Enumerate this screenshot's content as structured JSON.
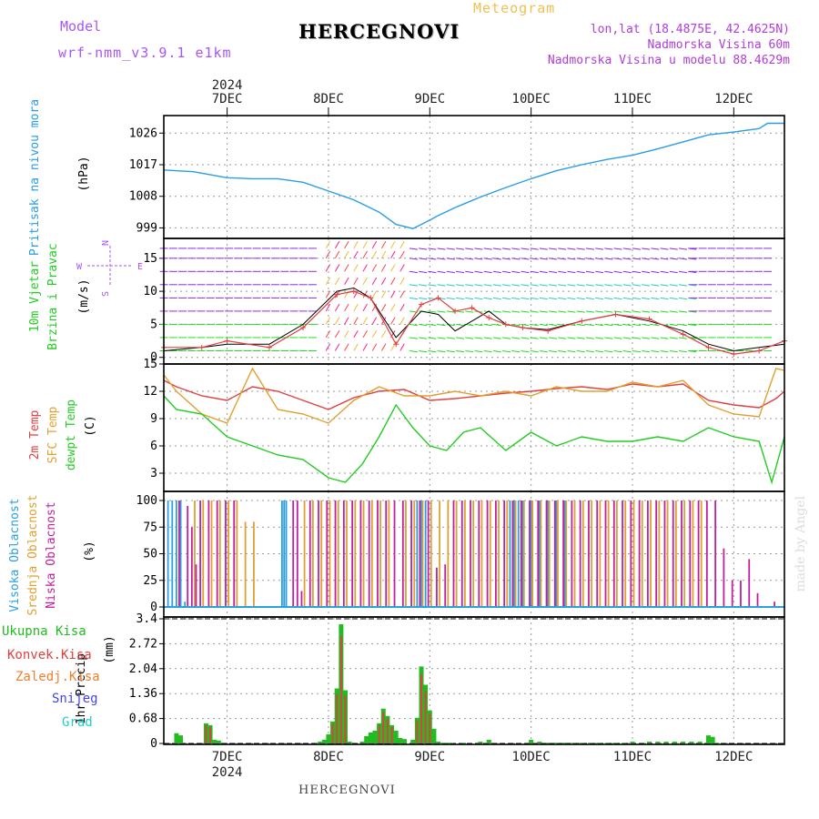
{
  "header": {
    "model_label": "Model",
    "model_name": "wrf-nmm_v3.9.1 e1km",
    "meteogram_label": "Meteogram",
    "station": "HERCEGNOVI",
    "lonlat": "lon,lat (18.4875E, 42.4625N)",
    "elevation": "Nadmorska Visina 60m",
    "model_elevation": "Nadmorska Visina u modelu 88.4629m"
  },
  "footer": {
    "station": "HERCEGNOVI",
    "credit": "made by Angel"
  },
  "colors": {
    "pressure": "#2a9de6",
    "temp2m": "#e04040",
    "sfc": "#e0a030",
    "dewpt": "#22cc22",
    "high_cloud": "#29a0e0",
    "mid_cloud": "#e0a030",
    "low_cloud": "#c020a0",
    "total_precip": "#22bb22",
    "conv_precip": "#e04040",
    "freezing": "#f08030",
    "snow": "#4444ee",
    "hail": "#22cccc",
    "wind_speed": "#000000",
    "gust": "#e04040"
  },
  "chart_data": [
    {
      "type": "line",
      "panel": "pressure",
      "ylabel_name": "Pritisak na nivou mora",
      "ylabel_unit": "(hPa)",
      "yticks": [
        999,
        1008,
        1017,
        1026
      ],
      "ylim": [
        996,
        1031
      ],
      "year": "2024",
      "days": [
        "7DEC",
        "8DEC",
        "9DEC",
        "10DEC",
        "11DEC",
        "12DEC"
      ],
      "xlim_hours": [
        -15,
        132
      ],
      "x": [
        -15,
        -8,
        0,
        6,
        12,
        18,
        24,
        30,
        36,
        40,
        44,
        46,
        48,
        50,
        54,
        60,
        66,
        72,
        78,
        84,
        90,
        96,
        102,
        108,
        114,
        120,
        126,
        128,
        132
      ],
      "values": [
        1015.5,
        1015,
        1013.3,
        1013,
        1013,
        1012,
        1009.5,
        1007,
        1003.5,
        1000,
        998.8,
        1000,
        1001.2,
        1002.5,
        1004.8,
        1007.8,
        1010.5,
        1013,
        1015.3,
        1017,
        1018.5,
        1019.7,
        1021.5,
        1023.5,
        1025.5,
        1026.3,
        1027.3,
        1028.8,
        1028.8
      ]
    },
    {
      "type": "line",
      "panel": "wind",
      "ylabel_name": "10m Vjetar",
      "ylabel_name2": "Brzina i Pravac",
      "ylabel_unit": "(m/s)",
      "compass": {
        "n": "N",
        "s": "S",
        "e": "E",
        "w": "W"
      },
      "yticks": [
        0,
        5,
        10,
        15
      ],
      "ylim": [
        -1,
        18
      ],
      "series": [
        {
          "role": "speed",
          "x": [
            -15,
            -6,
            0,
            10,
            18,
            26,
            30,
            34,
            40,
            46,
            50,
            54,
            58,
            62,
            66,
            70,
            76,
            84,
            92,
            100,
            108,
            114,
            120,
            126,
            132
          ],
          "values": [
            1,
            1.5,
            2,
            2,
            5,
            10,
            10.5,
            9,
            3,
            7,
            6.5,
            4,
            5.5,
            7,
            5,
            4.5,
            4.2,
            5.5,
            6.5,
            5.5,
            4,
            2,
            1,
            1.5,
            2
          ]
        },
        {
          "role": "gust",
          "x": [
            -15,
            -6,
            0,
            10,
            18,
            26,
            30,
            34,
            40,
            46,
            50,
            54,
            58,
            62,
            66,
            70,
            76,
            84,
            92,
            100,
            108,
            114,
            120,
            126,
            132
          ],
          "values": [
            1.5,
            1.5,
            2.5,
            1.5,
            4.5,
            9.5,
            10,
            9,
            2,
            8,
            9,
            7,
            7.5,
            6,
            5,
            4.5,
            4,
            5.5,
            6.5,
            5.8,
            3.5,
            1.5,
            0.5,
            1,
            2.5
          ]
        }
      ]
    },
    {
      "type": "line",
      "panel": "temperature",
      "ylabel_name1": "2m Temp",
      "ylabel_name2": "SFC Temp",
      "ylabel_name3": "dewpt Temp",
      "ylabel_unit": "(C)",
      "yticks": [
        3,
        6,
        9,
        12,
        15
      ],
      "ylim": [
        1,
        15
      ],
      "series": [
        {
          "name": "2m Temp",
          "x": [
            -15,
            -12,
            -6,
            0,
            6,
            12,
            18,
            24,
            30,
            36,
            42,
            48,
            54,
            60,
            66,
            72,
            78,
            84,
            90,
            96,
            102,
            108,
            114,
            120,
            126,
            130,
            132
          ],
          "values": [
            13.2,
            12.5,
            11.5,
            11,
            12.5,
            12,
            11,
            10,
            11.3,
            12,
            12.2,
            11,
            11.2,
            11.5,
            11.8,
            12,
            12.3,
            12.5,
            12.2,
            12.8,
            12.5,
            12.8,
            11,
            10.5,
            10.2,
            11.2,
            12
          ]
        },
        {
          "name": "SFC Temp",
          "x": [
            -15,
            -12,
            -6,
            0,
            6,
            12,
            18,
            24,
            30,
            36,
            42,
            48,
            54,
            60,
            66,
            72,
            78,
            84,
            90,
            96,
            102,
            108,
            114,
            120,
            126,
            130,
            132
          ],
          "values": [
            13.8,
            12,
            9.5,
            8.5,
            14.5,
            10,
            9.5,
            8.5,
            11,
            12.5,
            11.5,
            11.5,
            12,
            11.5,
            12,
            11.5,
            12.5,
            12,
            12,
            13,
            12.5,
            13.2,
            10.5,
            9.5,
            9.2,
            14.5,
            14.3
          ]
        },
        {
          "name": "dewpt Temp",
          "x": [
            -15,
            -12,
            -6,
            0,
            6,
            12,
            18,
            24,
            28,
            32,
            36,
            40,
            44,
            48,
            52,
            56,
            60,
            66,
            72,
            78,
            84,
            90,
            96,
            102,
            108,
            114,
            120,
            126,
            129,
            132
          ],
          "values": [
            11.5,
            10,
            9.5,
            7,
            6,
            5,
            4.5,
            2.5,
            2,
            4,
            7,
            10.5,
            8,
            6,
            5.5,
            7.5,
            8,
            5.5,
            7.5,
            6,
            7,
            6.5,
            6.5,
            7,
            6.5,
            8,
            7,
            6.5,
            2,
            7
          ]
        }
      ]
    },
    {
      "type": "bar",
      "panel": "clouds",
      "ylabel_name1": "Visoka Oblacnost",
      "ylabel_name2": "Srednja Oblacnost",
      "ylabel_name3": "Niska Oblacnost",
      "ylabel_unit": "(%)",
      "yticks": [
        0,
        25,
        50,
        75,
        100
      ],
      "ylim": [
        0,
        100
      ],
      "high": {
        "x": [
          -14,
          -13,
          -12,
          -11,
          -10,
          13,
          13.5,
          14,
          45,
          46,
          47,
          67,
          68,
          69,
          70,
          72,
          74,
          76,
          78,
          80
        ],
        "values": [
          100,
          100,
          100,
          100,
          5,
          100,
          100,
          100,
          100,
          100,
          100,
          100,
          100,
          100,
          100,
          100,
          100,
          100,
          100,
          100
        ]
      },
      "mid": {
        "x": [
          -8,
          -6,
          -4,
          -2,
          0,
          2,
          4,
          6,
          18,
          20,
          22,
          24,
          26,
          28,
          30,
          32,
          34,
          36,
          38,
          42,
          44,
          46,
          48,
          50,
          52,
          54,
          56,
          58,
          60,
          62,
          64,
          66,
          68,
          70,
          72,
          74,
          76,
          78,
          80,
          82,
          84,
          86,
          88,
          90,
          92,
          94,
          96,
          98,
          100,
          102,
          104,
          106,
          108,
          110,
          112
        ],
        "values": [
          100,
          100,
          100,
          100,
          100,
          100,
          80,
          80,
          100,
          100,
          100,
          100,
          100,
          100,
          100,
          100,
          100,
          100,
          100,
          100,
          100,
          100,
          100,
          100,
          100,
          100,
          100,
          100,
          100,
          100,
          100,
          100,
          100,
          100,
          100,
          100,
          100,
          100,
          100,
          100,
          100,
          100,
          100,
          100,
          100,
          100,
          100,
          100,
          100,
          100,
          100,
          100,
          100,
          100,
          100
        ]
      },
      "low": {
        "x": [
          -12,
          -10,
          -9,
          -8,
          -7,
          -5,
          -3,
          -1,
          1,
          15,
          16,
          17,
          19,
          21,
          23,
          25,
          27,
          29,
          31,
          33,
          35,
          37,
          39,
          41,
          43,
          45,
          47,
          49,
          51,
          53,
          55,
          57,
          59,
          61,
          63,
          65,
          67,
          69,
          71,
          73,
          75,
          77,
          79,
          81,
          83,
          85,
          87,
          89,
          91,
          93,
          95,
          97,
          99,
          101,
          103,
          105,
          107,
          109,
          111,
          113,
          115,
          117,
          119,
          121,
          123,
          125,
          129
        ],
        "values": [
          100,
          95,
          75,
          40,
          100,
          100,
          100,
          100,
          100,
          100,
          100,
          15,
          100,
          100,
          100,
          100,
          100,
          100,
          100,
          100,
          100,
          100,
          100,
          100,
          100,
          100,
          100,
          37,
          40,
          100,
          100,
          100,
          100,
          100,
          100,
          100,
          100,
          100,
          100,
          100,
          100,
          100,
          100,
          100,
          100,
          100,
          100,
          100,
          100,
          100,
          100,
          100,
          100,
          100,
          100,
          100,
          100,
          100,
          100,
          100,
          100,
          55,
          25,
          25,
          45,
          13,
          5
        ]
      }
    },
    {
      "type": "bar",
      "panel": "precipitation",
      "ylabel_name": "1hr Precip",
      "ylabel_unit": "(mm)",
      "legend": [
        "Ukupna Kisa",
        "Konvek.Kisa",
        "Zaledj.Kisa",
        "Snijeg",
        "Grad"
      ],
      "ytick_labels": [
        "0",
        "0.68",
        "1.36",
        "2.04",
        "2.72",
        "3.4"
      ],
      "yticks": [
        0,
        0.68,
        1.36,
        2.04,
        2.72,
        3.4
      ],
      "ylim": [
        0,
        3.4
      ],
      "x": [
        -12,
        -11,
        -5,
        -4,
        -3,
        -2,
        22,
        23,
        24,
        25,
        26,
        27,
        28,
        29,
        32,
        33,
        34,
        35,
        36,
        37,
        38,
        39,
        40,
        41,
        42,
        44,
        45,
        46,
        47,
        48,
        49,
        50,
        51,
        52,
        53,
        56,
        60,
        62,
        72,
        74,
        76,
        78,
        80,
        82,
        84,
        86,
        88,
        90,
        92,
        94,
        96,
        100,
        102,
        104,
        106,
        108,
        110,
        112,
        114,
        115,
        116
      ],
      "values": [
        0.28,
        0.22,
        0.55,
        0.5,
        0.1,
        0.08,
        0.05,
        0.1,
        0.25,
        0.6,
        1.5,
        3.25,
        1.45,
        0.05,
        0.05,
        0.2,
        0.3,
        0.35,
        0.55,
        0.95,
        0.75,
        0.5,
        0.35,
        0.15,
        0.12,
        0.1,
        0.7,
        2.1,
        1.6,
        0.9,
        0.4,
        0.05,
        0.02,
        0.02,
        0.02,
        0.02,
        0.05,
        0.1,
        0.1,
        0.05,
        0.02,
        0.02,
        0.02,
        0.02,
        0.02,
        0.02,
        0.02,
        0.02,
        0.02,
        0.02,
        0.05,
        0.05,
        0.05,
        0.05,
        0.05,
        0.05,
        0.05,
        0.05,
        0.22,
        0.18,
        0.02
      ]
    }
  ]
}
